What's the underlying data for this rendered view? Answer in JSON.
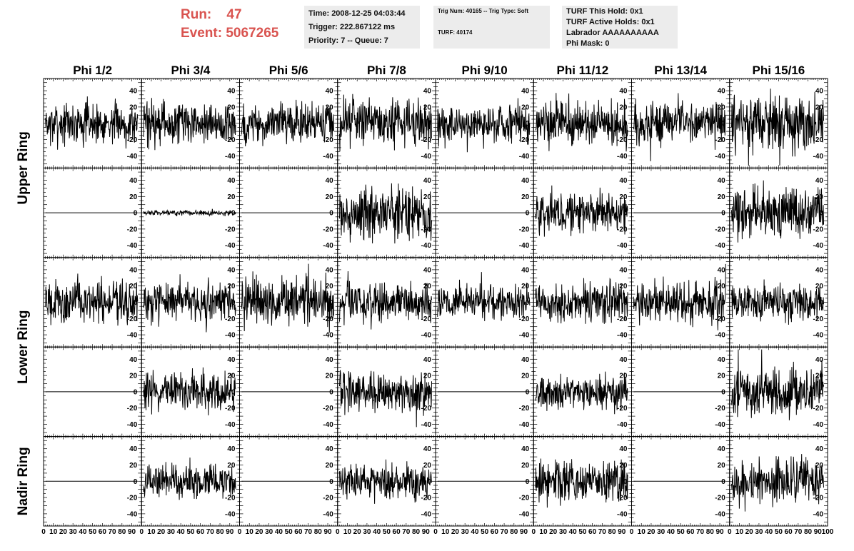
{
  "header": {
    "run_label": "Run:",
    "run_value": "47",
    "event_label": "Event:",
    "event_value": "5067265"
  },
  "info_time": {
    "line1": "Time: 2008-12-25 04:03:44",
    "line2": "Trigger: 222.867122 ms",
    "line3": "Priority: 7 -- Queue: 7"
  },
  "info_trig": {
    "line1": "Trig Num: 40165 -- Trig Type: Soft",
    "line2": "TURF: 40174"
  },
  "info_turf": {
    "line1": "TURF This Hold: 0x1",
    "line2": "TURF Active Holds: 0x1",
    "line3": "Labrador AAAAAAAAAA",
    "line4": "Phi Mask: 0"
  },
  "colors": {
    "header_red": "#d9534f",
    "info_bg": "#ececec",
    "trace": "#000000"
  },
  "chart_data": {
    "type": "line",
    "phi_titles": [
      "Phi 1/2",
      "Phi 3/4",
      "Phi 5/6",
      "Phi 7/8",
      "Phi 9/10",
      "Phi 11/12",
      "Phi 13/14",
      "Phi 15/16"
    ],
    "ring_titles": [
      "Upper Ring",
      "Lower Ring",
      "Nadir Ring"
    ],
    "xlim": [
      0,
      100
    ],
    "ylim": [
      -55,
      55
    ],
    "x_ticks": [
      0,
      10,
      20,
      30,
      40,
      50,
      60,
      70,
      80,
      90,
      100
    ],
    "y_ticks": [
      -40,
      -20,
      0,
      20,
      40
    ],
    "grid": false,
    "trace_samples": 260,
    "traces": [
      [
        17,
        18,
        17,
        19,
        17,
        19,
        17,
        24
      ],
      [
        0,
        2,
        0,
        22,
        0,
        17,
        0,
        20
      ],
      [
        18,
        17,
        20,
        17,
        14,
        17,
        17,
        16
      ],
      [
        0,
        16,
        0,
        17,
        0,
        14,
        0,
        20
      ],
      [
        0,
        14,
        0,
        16,
        0,
        18,
        0,
        18
      ]
    ]
  }
}
